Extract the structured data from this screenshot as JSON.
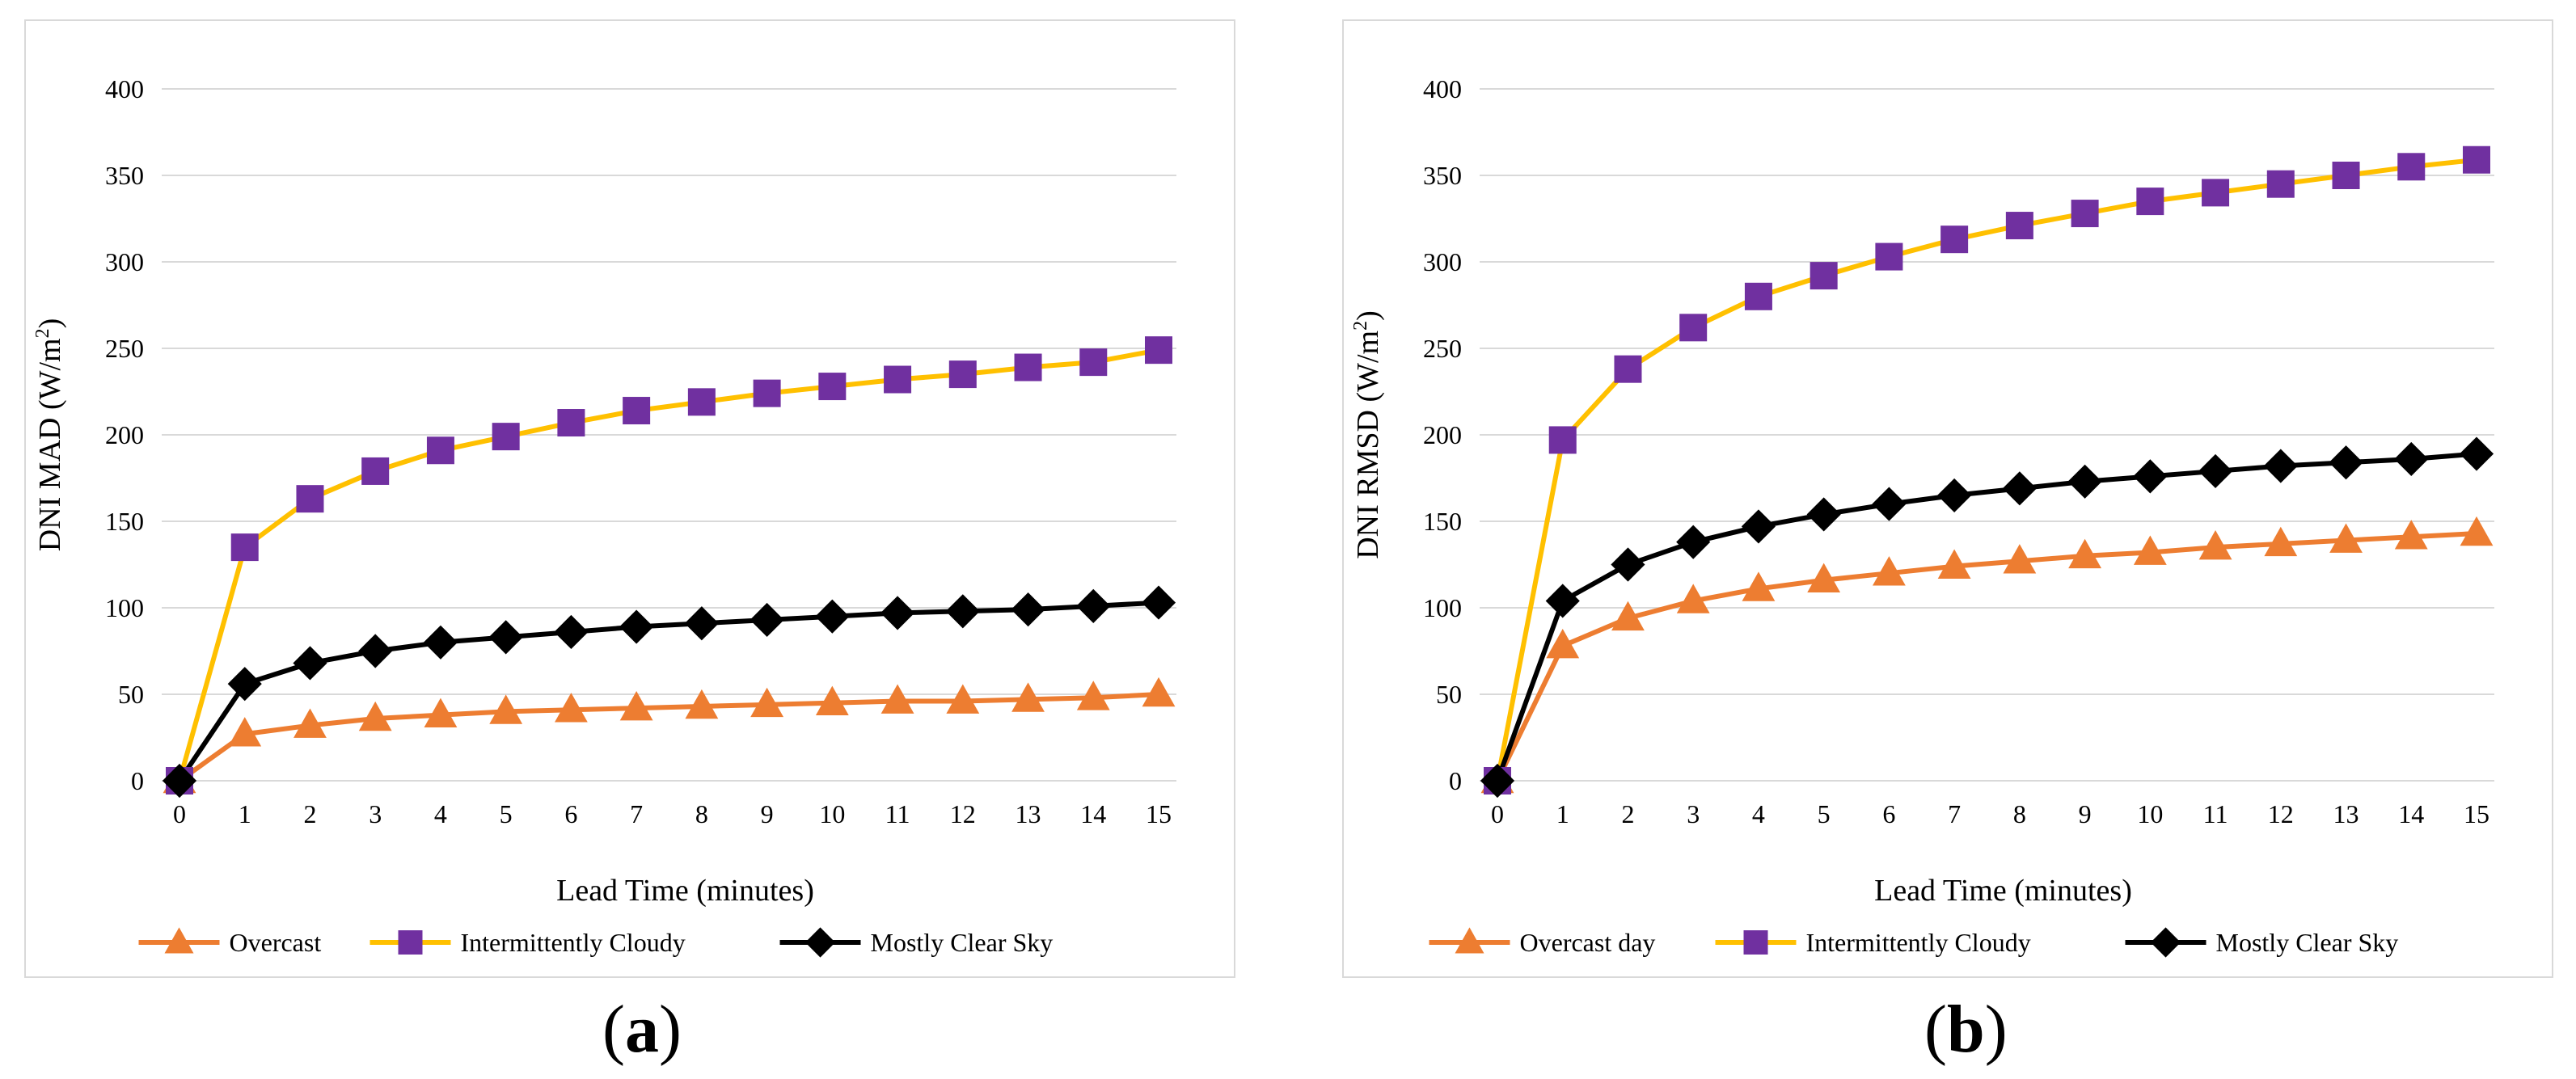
{
  "chart_data": [
    {
      "type": "line",
      "panel_label": "a",
      "xlabel": "Lead Time (minutes)",
      "ylabel": "DNI MAD (W/m",
      "ylabel_sup": "2",
      "ylabel_end": ")",
      "ylim": [
        0,
        400
      ],
      "yticks": [
        0,
        50,
        100,
        150,
        200,
        250,
        300,
        350,
        400
      ],
      "x": [
        0,
        1,
        2,
        3,
        4,
        5,
        6,
        7,
        8,
        9,
        10,
        11,
        12,
        13,
        14,
        15
      ],
      "grid": true,
      "legend_position": "bottom",
      "series": [
        {
          "name": "Overcast",
          "color": "#ED7D31",
          "marker": "triangle",
          "values": [
            0,
            27,
            32,
            36,
            38,
            40,
            41,
            42,
            43,
            44,
            45,
            46,
            46,
            47,
            48,
            50
          ]
        },
        {
          "name": "Intermittently Cloudy",
          "color": "#FFC000",
          "marker": "square",
          "marker_color": "#7030A0",
          "values": [
            0,
            135,
            163,
            179,
            191,
            199,
            207,
            214,
            219,
            224,
            228,
            232,
            235,
            239,
            242,
            249
          ]
        },
        {
          "name": "Mostly Clear Sky",
          "color": "#000000",
          "marker": "diamond",
          "values": [
            0,
            56,
            68,
            75,
            80,
            83,
            86,
            89,
            91,
            93,
            95,
            97,
            98,
            99,
            101,
            103
          ]
        }
      ]
    },
    {
      "type": "line",
      "panel_label": "b",
      "xlabel": "Lead Time (minutes)",
      "ylabel": "DNI RMSD (W/m",
      "ylabel_sup": "2",
      "ylabel_end": ")",
      "ylim": [
        0,
        400
      ],
      "yticks": [
        0,
        50,
        100,
        150,
        200,
        250,
        300,
        350,
        400
      ],
      "x": [
        0,
        1,
        2,
        3,
        4,
        5,
        6,
        7,
        8,
        9,
        10,
        11,
        12,
        13,
        14,
        15
      ],
      "grid": true,
      "legend_position": "bottom",
      "series": [
        {
          "name": "Overcast day",
          "color": "#ED7D31",
          "marker": "triangle",
          "values": [
            0,
            78,
            94,
            104,
            111,
            116,
            120,
            124,
            127,
            130,
            132,
            135,
            137,
            139,
            141,
            143
          ]
        },
        {
          "name": "Intermittently Cloudy",
          "color": "#FFC000",
          "marker": "square",
          "marker_color": "#7030A0",
          "values": [
            0,
            197,
            238,
            262,
            280,
            292,
            303,
            313,
            321,
            328,
            335,
            340,
            345,
            350,
            355,
            359
          ]
        },
        {
          "name": "Mostly Clear Sky",
          "color": "#000000",
          "marker": "diamond",
          "values": [
            0,
            104,
            125,
            138,
            147,
            154,
            160,
            165,
            169,
            173,
            176,
            179,
            182,
            184,
            186,
            189
          ]
        }
      ]
    }
  ]
}
